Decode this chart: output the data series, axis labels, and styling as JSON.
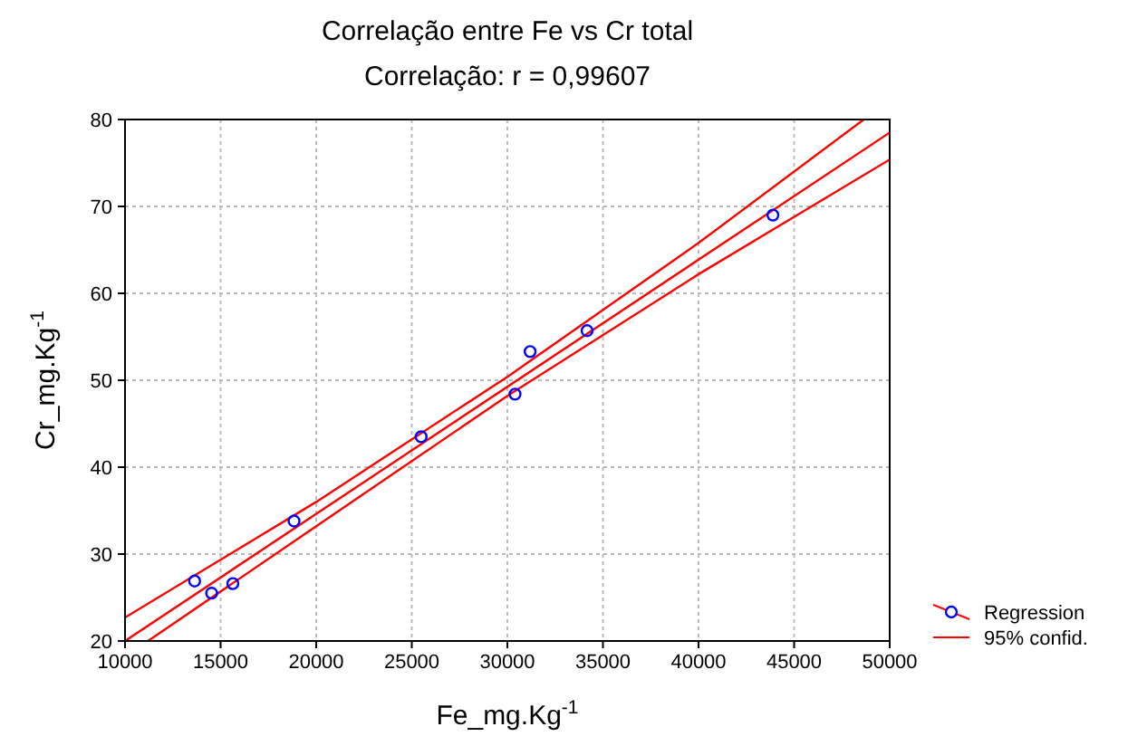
{
  "chart_data": {
    "type": "scatter",
    "title": "Correlação entre Fe vs Cr total",
    "subtitle": "Correlação: r = 0,99607",
    "xlabel": "Fe_mg.Kg$^{-1}$",
    "ylabel": "Cr_mg.Kg$^{-1}$",
    "xlim": [
      10000,
      50000
    ],
    "xticks": [
      10000,
      15000,
      20000,
      25000,
      30000,
      35000,
      40000,
      45000,
      50000
    ],
    "ylim": [
      20,
      80
    ],
    "yticks": [
      20,
      30,
      40,
      50,
      60,
      70,
      80
    ],
    "grid": true,
    "legend": "bottom right",
    "series": [
      {
        "name": "Regression",
        "marker": "circle",
        "color": "#0000ff",
        "x": [
          13640,
          14530,
          15640,
          18840,
          25490,
          30400,
          31190,
          34170,
          43890
        ],
        "values": [
          26.9,
          25.5,
          26.6,
          33.8,
          43.5,
          48.4,
          53.3,
          55.7,
          69.0
        ]
      },
      {
        "type": "line",
        "marker": "none",
        "color": "#ff0000",
        "x": [
          10000,
          50000
        ],
        "values": [
          20.0,
          78.5
        ]
      },
      {
        "name": "95% confid.",
        "type": "line",
        "marker": "none",
        "color": "#ff0000",
        "x": [
          10000,
          20000,
          30000,
          40000,
          48640
        ],
        "values": [
          22.7,
          36.0,
          50.4,
          65.8,
          80
        ]
      },
      {
        "type": "line",
        "marker": "none",
        "color": "#ff0000",
        "x": [
          11200,
          20000,
          30000,
          40000,
          50000
        ],
        "values": [
          20,
          33.2,
          48.2,
          62.2,
          75.4
        ]
      }
    ]
  }
}
